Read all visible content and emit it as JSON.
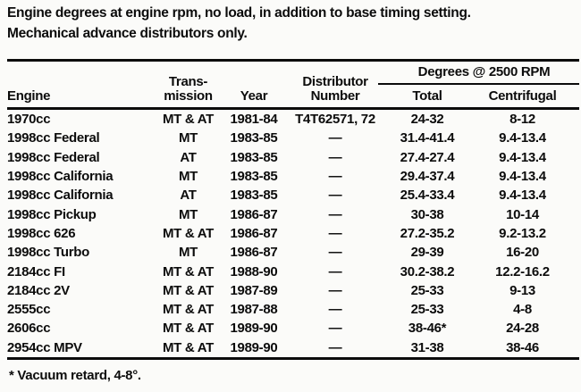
{
  "intro": {
    "line1": "Engine degrees at engine rpm, no load, in addition to base timing setting.",
    "line2": "Mechanical advance distributors only."
  },
  "table": {
    "group_header": "Degrees @ 2500 RPM",
    "columns": {
      "engine": "Engine",
      "transmission_line1": "Trans-",
      "transmission_line2": "mission",
      "year": "Year",
      "distributor_line1": "Distributor",
      "distributor_line2": "Number",
      "total": "Total",
      "centrifugal": "Centrifugal"
    },
    "rows": [
      [
        "1970cc",
        "MT & AT",
        "1981-84",
        "T4T62571, 72",
        "24-32",
        "8-12"
      ],
      [
        "1998cc Federal",
        "MT",
        "1983-85",
        "—",
        "31.4-41.4",
        "9.4-13.4"
      ],
      [
        "1998cc Federal",
        "AT",
        "1983-85",
        "—",
        "27.4-27.4",
        "9.4-13.4"
      ],
      [
        "1998cc California",
        "MT",
        "1983-85",
        "—",
        "29.4-37.4",
        "9.4-13.4"
      ],
      [
        "1998cc California",
        "AT",
        "1983-85",
        "—",
        "25.4-33.4",
        "9.4-13.4"
      ],
      [
        "1998cc Pickup",
        "MT",
        "1986-87",
        "—",
        "30-38",
        "10-14"
      ],
      [
        "1998cc 626",
        "MT & AT",
        "1986-87",
        "—",
        "27.2-35.2",
        "9.2-13.2"
      ],
      [
        "1998cc Turbo",
        "MT",
        "1986-87",
        "—",
        "29-39",
        "16-20"
      ],
      [
        "2184cc FI",
        "MT & AT",
        "1988-90",
        "—",
        "30.2-38.2",
        "12.2-16.2"
      ],
      [
        "2184cc 2V",
        "MT & AT",
        "1987-89",
        "—",
        "25-33",
        "9-13"
      ],
      [
        "2555cc",
        "MT & AT",
        "1987-88",
        "—",
        "25-33",
        "4-8"
      ],
      [
        "2606cc",
        "MT & AT",
        "1989-90",
        "—",
        "38-46*",
        "24-28"
      ],
      [
        "2954cc MPV",
        "MT & AT",
        "1989-90",
        "—",
        "31-38",
        "38-46"
      ]
    ],
    "footnote": "* Vacuum retard, 4-8°."
  }
}
